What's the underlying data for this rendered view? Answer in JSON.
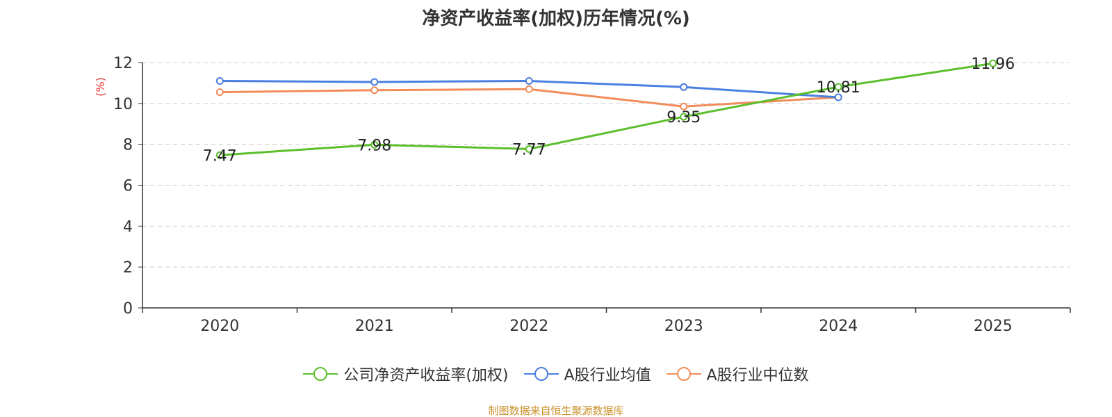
{
  "title": "净资产收益率(加权)历年情况(%)",
  "source_note": "制图数据来自恒生聚源数据库",
  "colors": {
    "company": "#5bbf2c",
    "industry_avg": "#4a7fe0",
    "industry_median": "#f28c5a",
    "ylabel": "#e83030",
    "source": "#c8902a",
    "grid": "#cccccc",
    "axis": "#333333"
  },
  "legend": [
    {
      "label": "公司净资产收益率(加权)",
      "color": "#5bbf2c"
    },
    {
      "label": "A股行业均值",
      "color": "#4a7fe0"
    },
    {
      "label": "A股行业中位数",
      "color": "#f28c5a"
    }
  ],
  "chart_data": {
    "type": "line",
    "title": "净资产收益率(加权)历年情况(%)",
    "xlabel": "",
    "ylabel": "(%)",
    "categories": [
      "2020",
      "2021",
      "2022",
      "2023",
      "2024",
      "2025"
    ],
    "ylim": [
      0,
      12
    ],
    "yticks": [
      0,
      2,
      4,
      6,
      8,
      10,
      12
    ],
    "grid": true,
    "legend_position": "bottom",
    "series": [
      {
        "name": "公司净资产收益率(加权)",
        "color": "#5bbf2c",
        "values": [
          7.47,
          7.98,
          7.77,
          9.35,
          10.81,
          11.96
        ],
        "labels": [
          "7.47",
          "7.98",
          "7.77",
          "9.35",
          "10.81",
          "11.96"
        ]
      },
      {
        "name": "A股行业均值",
        "color": "#4a7fe0",
        "values": [
          11.1,
          11.05,
          11.1,
          10.8,
          10.3,
          null
        ]
      },
      {
        "name": "A股行业中位数",
        "color": "#f28c5a",
        "values": [
          10.55,
          10.65,
          10.7,
          9.85,
          10.3,
          null
        ]
      }
    ]
  }
}
